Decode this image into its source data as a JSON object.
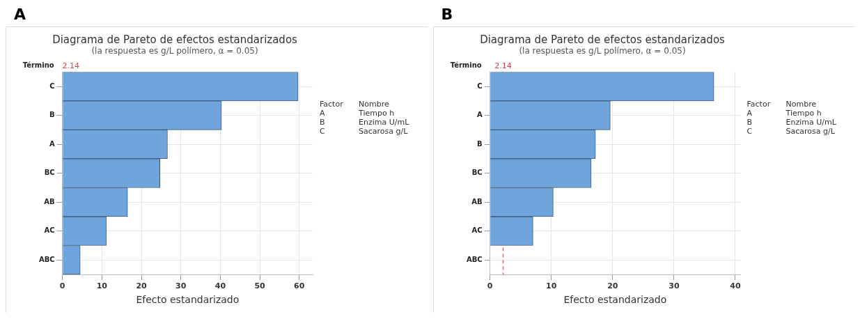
{
  "chart_data": [
    {
      "type": "bar",
      "orientation": "horizontal",
      "title": "Diagrama de Pareto de efectos estandarizados",
      "subtitle": "(la respuesta es g/L polímero, α = 0.05)",
      "xlabel": "Efecto estandarizado",
      "ylabel": "Término",
      "categories": [
        "C",
        "B",
        "A",
        "BC",
        "AB",
        "AC",
        "ABC"
      ],
      "series": [
        {
          "color": "#6fa4dc",
          "values": [
            59.7,
            40.3,
            26.6,
            24.7,
            16.5,
            11.1,
            4.5
          ]
        }
      ],
      "xlim": [
        0,
        63.4
      ],
      "xticks": [
        0,
        10,
        20,
        30,
        40,
        50,
        60
      ],
      "grid": true,
      "legend": false,
      "ref_lines": [
        {
          "axis": "x",
          "value": 2.14,
          "label": "2.14",
          "color": "#d8404a",
          "line_style": "dashed"
        }
      ],
      "annotations": [
        "A",
        "Factor",
        "Nombre",
        "A",
        "Tiempo h",
        "B",
        "Enzima U/mL",
        "C",
        "Sacarosa g/L"
      ]
    },
    {
      "type": "bar",
      "orientation": "horizontal",
      "title": "Diagrama de Pareto de efectos estandarizados",
      "subtitle": "(la respuesta es g/L polímero, α = 0.05)",
      "xlabel": "Efecto estandarizado",
      "ylabel": "Término",
      "categories": [
        "C",
        "A",
        "B",
        "BC",
        "AB",
        "AC",
        "ABC"
      ],
      "series": [
        {
          "color": "#6fa4dc",
          "values": [
            36.5,
            19.6,
            17.2,
            16.5,
            10.3,
            7.0,
            null
          ]
        }
      ],
      "xlim": [
        0,
        40.8
      ],
      "xticks": [
        0,
        10,
        20,
        30,
        40
      ],
      "grid": true,
      "legend": false,
      "ref_lines": [
        {
          "axis": "x",
          "value": 2.14,
          "label": "2.14",
          "color": "#d8404a",
          "line_style": "dashed"
        }
      ],
      "annotations": [
        "B",
        "Factor",
        "Nombre",
        "A",
        "Tiempo h",
        "B",
        "Enzima U/mL",
        "C",
        "Sacarosa g/L"
      ]
    }
  ]
}
